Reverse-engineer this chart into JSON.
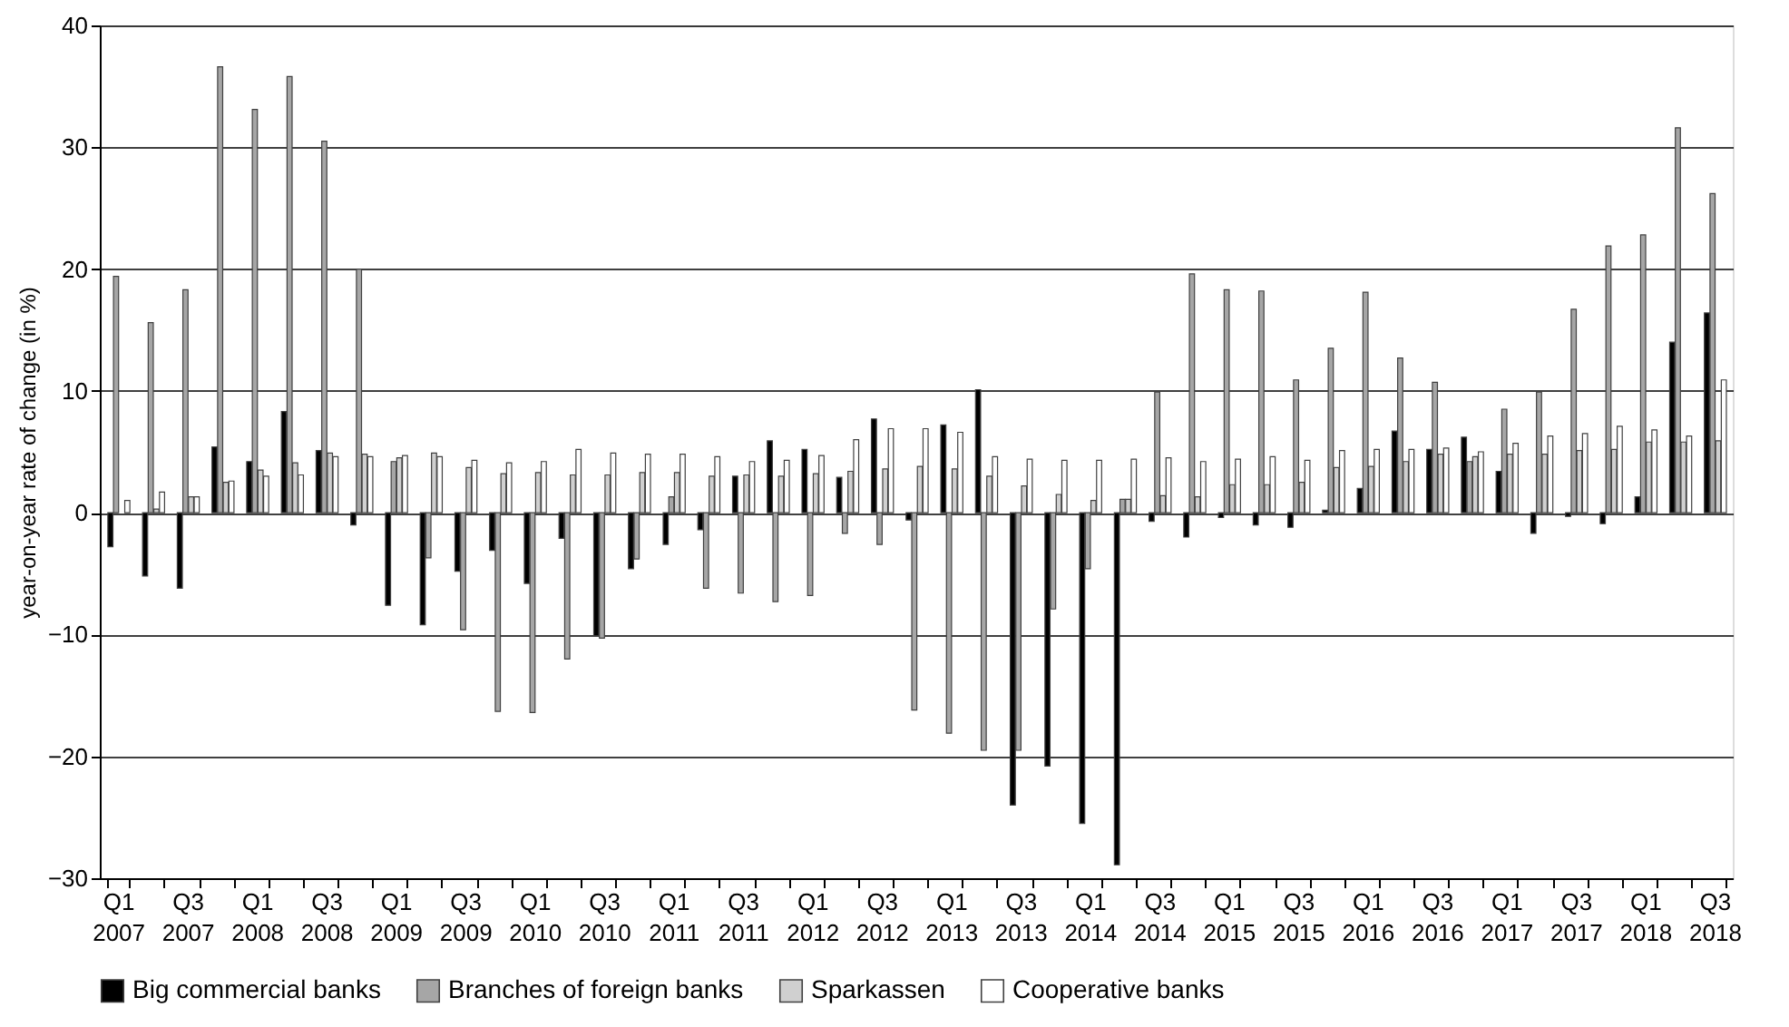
{
  "chart_data": {
    "type": "bar",
    "ylabel": "year-on-year rate of change (in %)",
    "categories": [
      "Q1 2007",
      null,
      "Q3 2007",
      null,
      "Q1 2008",
      null,
      "Q3 2008",
      null,
      "Q1 2009",
      null,
      "Q3 2009",
      null,
      "Q1 2010",
      null,
      "Q3 2010",
      null,
      "Q1 2011",
      null,
      "Q3 2011",
      null,
      "Q1 2012",
      null,
      "Q3 2012",
      null,
      "Q1 2013",
      null,
      "Q3 2013",
      null,
      "Q1 2014",
      null,
      "Q3 2014",
      null,
      "Q1 2015",
      null,
      "Q3 2015",
      null,
      "Q1 2016",
      null,
      "Q3 2016",
      null,
      "Q1 2017",
      null,
      "Q3 2017",
      null,
      "Q1 2018",
      null,
      "Q3 2018"
    ],
    "series": [
      {
        "name": "Big commercial banks",
        "color": "#000000",
        "values": [
          -2.8,
          -5.2,
          -6.2,
          5.4,
          4.2,
          8.3,
          5.1,
          -1.0,
          -7.6,
          -9.2,
          -4.8,
          -3.1,
          -5.8,
          -2.1,
          -10.1,
          -4.6,
          -2.6,
          -1.4,
          3.0,
          5.9,
          5.2,
          2.9,
          7.7,
          -0.6,
          7.2,
          10.1,
          -24.0,
          -20.8,
          -25.5,
          -28.9,
          -0.7,
          -2.0,
          -0.4,
          -1.0,
          -1.2,
          0.2,
          2.0,
          6.7,
          5.2,
          6.2,
          3.4,
          -1.7,
          -0.3,
          -0.9,
          1.3,
          14.0,
          16.4
        ]
      },
      {
        "name": "Branches of foreign banks",
        "color": "#a6a6a6",
        "values": [
          19.4,
          15.6,
          18.3,
          36.6,
          33.1,
          35.8,
          30.5,
          20.0,
          4.2,
          -3.7,
          -9.6,
          -16.3,
          -16.4,
          -12.0,
          -10.3,
          -3.8,
          1.3,
          -6.2,
          -6.6,
          -7.3,
          -6.8,
          -1.7,
          -2.6,
          -16.2,
          -18.1,
          -19.5,
          -19.5,
          -7.9,
          -4.6,
          1.1,
          9.9,
          19.6,
          18.3,
          18.2,
          10.9,
          13.5,
          18.1,
          12.7,
          10.7,
          4.2,
          8.5,
          9.9,
          16.7,
          21.9,
          22.8,
          31.6,
          26.2
        ]
      },
      {
        "name": "Sparkassen",
        "color": "#d0d0d0",
        "values": [
          null,
          0.3,
          1.3,
          2.5,
          3.5,
          4.1,
          4.9,
          4.8,
          4.5,
          4.9,
          3.7,
          3.2,
          3.3,
          3.1,
          3.1,
          3.3,
          3.3,
          3.0,
          3.1,
          3.0,
          3.2,
          3.4,
          3.6,
          3.8,
          3.6,
          3.0,
          2.2,
          1.5,
          1.0,
          1.1,
          1.4,
          1.3,
          2.3,
          2.3,
          2.5,
          3.7,
          3.8,
          4.2,
          4.8,
          4.6,
          4.8,
          4.8,
          5.1,
          5.2,
          5.8,
          5.8,
          5.9
        ]
      },
      {
        "name": "Cooperative banks",
        "color": "#ffffff",
        "values": [
          1.0,
          1.7,
          1.3,
          2.6,
          3.0,
          3.1,
          4.6,
          4.6,
          4.7,
          4.6,
          4.3,
          4.1,
          4.2,
          5.2,
          4.9,
          4.8,
          4.8,
          4.6,
          4.2,
          4.3,
          4.7,
          6.0,
          6.9,
          6.9,
          6.6,
          4.6,
          4.4,
          4.3,
          4.3,
          4.4,
          4.5,
          4.2,
          4.4,
          4.6,
          4.3,
          5.1,
          5.2,
          5.2,
          5.3,
          5.0,
          5.7,
          6.3,
          6.5,
          7.1,
          6.8,
          6.3,
          10.9
        ]
      }
    ],
    "ylim": [
      -30,
      40
    ],
    "yticks": [
      -30,
      -20,
      -10,
      0,
      10,
      20,
      30,
      40
    ],
    "grid": "y",
    "legend": "bottom"
  }
}
